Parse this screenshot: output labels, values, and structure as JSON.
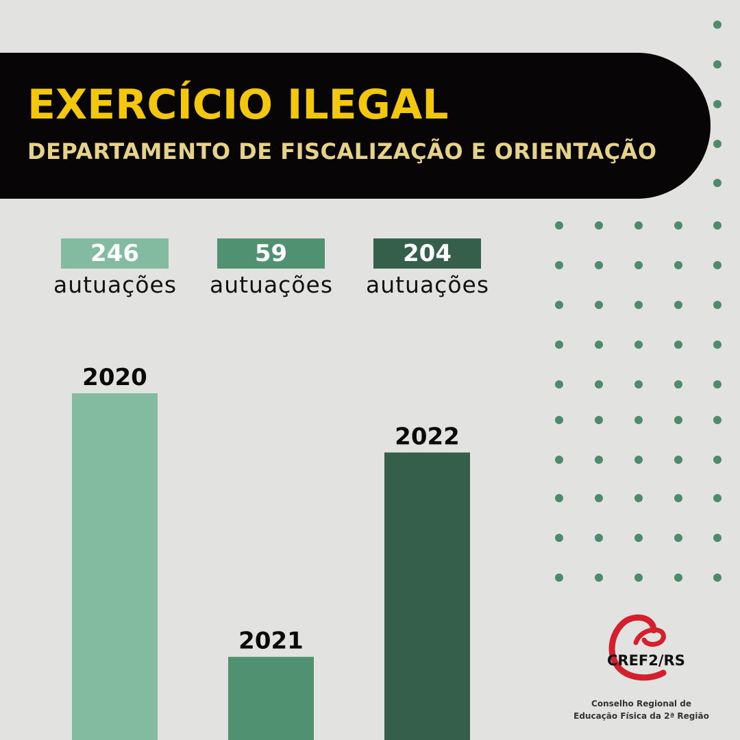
{
  "header": {
    "title": "EXERCÍCIO ILEGAL",
    "subtitle": "DEPARTAMENTO DE FISCALIZAÇÃO E ORIENTAÇÃO"
  },
  "counts": [
    {
      "value": "246",
      "unit": "autuações"
    },
    {
      "value": "59",
      "unit": "autuações"
    },
    {
      "value": "204",
      "unit": "autuações"
    }
  ],
  "colors": {
    "background": "#e2e3e1",
    "banner": "#070505",
    "title": "#f4c70f",
    "subtitle": "#e7d28a",
    "dots": "#4e8a6c",
    "series": [
      "#82bb9f",
      "#4f9171",
      "#355f4b"
    ],
    "logo_red": "#d4202c"
  },
  "chart_data": {
    "type": "bar",
    "categories": [
      "2020",
      "2021",
      "2022"
    ],
    "values": [
      246,
      59,
      204
    ]
  },
  "logo": {
    "name": "CREF2/RS",
    "line1": "Conselho Regional de",
    "line2": "Educação Física da 2ª Região"
  }
}
